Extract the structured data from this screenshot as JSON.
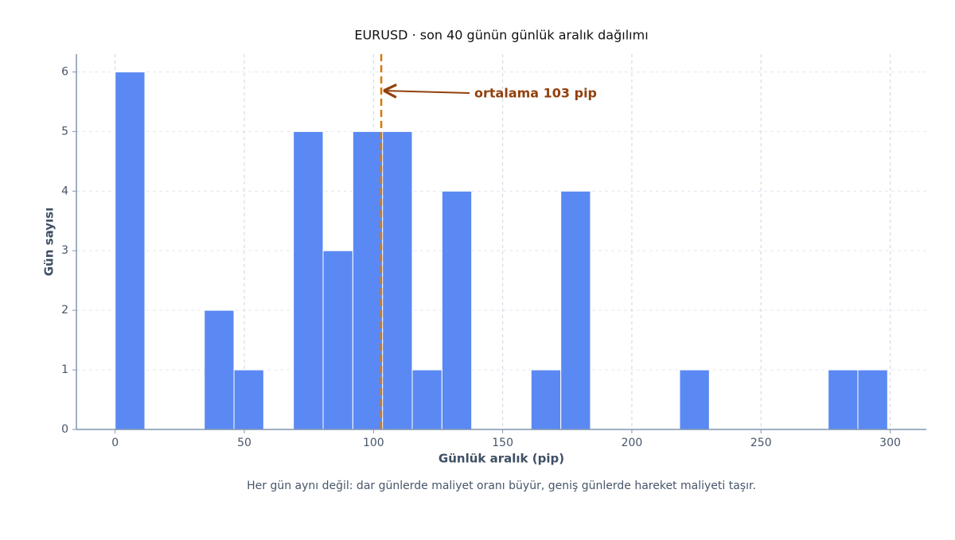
{
  "chart_data": {
    "type": "histogram",
    "title": "EURUSD · son 40 günün günlük aralık dağılımı",
    "x_label": "Günlük aralık (pip)",
    "y_label": "Gün sayısı",
    "caption": "Her gün aynı değil: dar günlerde maliyet oranı büyür, geniş günlerde hareket maliyeti taşır.",
    "bins": [
      0,
      11.5,
      23,
      34.5,
      46,
      57.5,
      69,
      80.5,
      92,
      103.5,
      115,
      126.5,
      138,
      149.5,
      161,
      172.5,
      184,
      195.5,
      207,
      218.5,
      230,
      241.5,
      253,
      264.5,
      276,
      287.5,
      299
    ],
    "values": [
      6,
      0,
      0,
      2,
      1,
      0,
      5,
      3,
      5,
      5,
      1,
      4,
      0,
      0,
      1,
      4,
      0,
      0,
      0,
      1,
      0,
      0,
      0,
      0,
      1,
      1
    ],
    "color": "#5b89f3",
    "mean_line": {
      "value": 103,
      "color": "#d97706",
      "annotation": "ortalama 103 pip",
      "annotation_color": "#92400e"
    },
    "xlim": [
      -15,
      314
    ],
    "ylim": [
      0,
      6.3
    ],
    "xticks": [
      0,
      50,
      100,
      150,
      200,
      250,
      300
    ],
    "yticks": [
      0,
      1,
      2,
      3,
      4,
      5,
      6
    ],
    "grid": true
  }
}
